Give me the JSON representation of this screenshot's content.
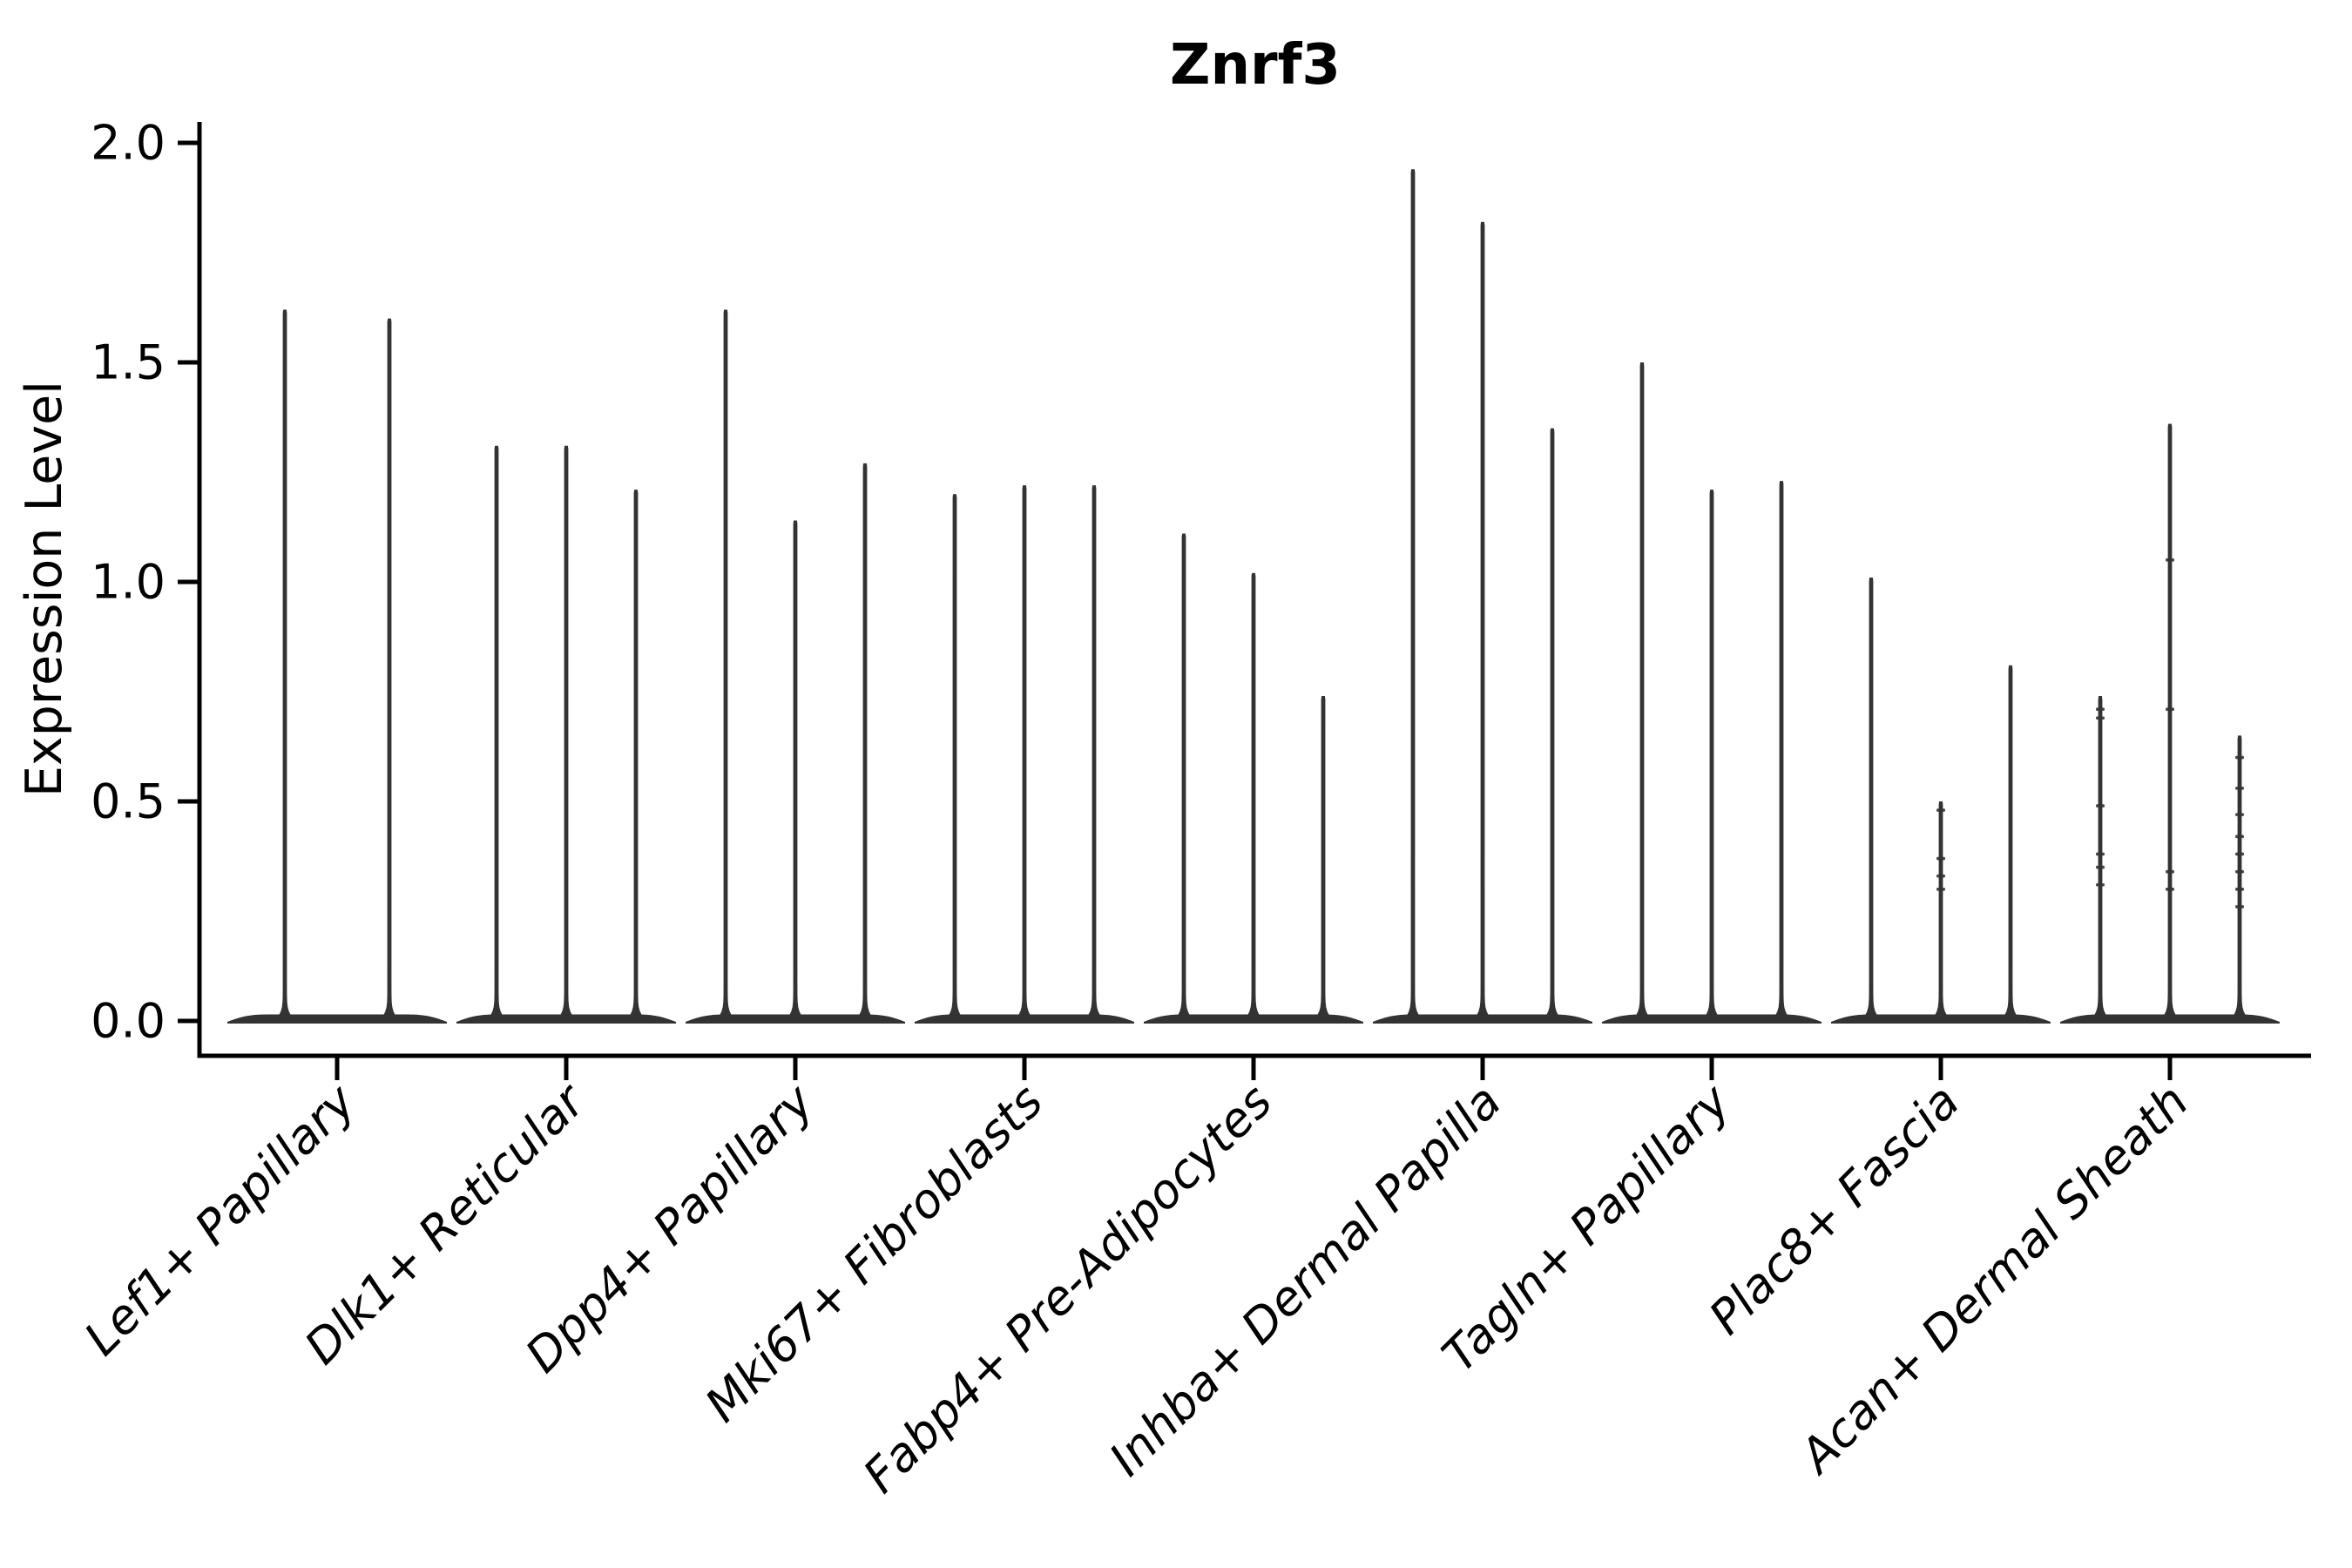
{
  "figure": {
    "title": "Znrf3"
  },
  "chart_data": {
    "type": "violin",
    "title": "Znrf3",
    "xlabel": "",
    "ylabel": "Expression Level",
    "ylim": [
      0,
      2.0
    ],
    "yticks": [
      0.0,
      0.5,
      1.0,
      1.5,
      2.0
    ],
    "ytick_labels": [
      "0.0",
      "0.5",
      "1.0",
      "1.5",
      "2.0"
    ],
    "x_tick_rotation": 45,
    "grid": false,
    "legend": "none",
    "categories": [
      "Lef1+ Papillary",
      "Dlk1+ Reticular",
      "Dpp4+ Papillary",
      "Mki67+ Fibroblasts",
      "Fabp4+ Pre-Adipocytes",
      "Inhba+ Dermal Papilla",
      "Tagln+ Papillary",
      "Plac8+ Fascia",
      "Acan+ Dermal Sheath"
    ],
    "groups": [
      {
        "category": "Lef1+ Papillary",
        "violin_maxima": [
          1.62,
          1.6
        ]
      },
      {
        "category": "Dlk1+ Reticular",
        "violin_maxima": [
          1.31,
          1.31,
          1.21
        ]
      },
      {
        "category": "Dpp4+ Papillary",
        "violin_maxima": [
          1.62,
          1.14,
          1.27
        ]
      },
      {
        "category": "Mki67+ Fibroblasts",
        "violin_maxima": [
          1.2,
          1.22,
          1.22
        ]
      },
      {
        "category": "Fabp4+ Pre-Adipocytes",
        "violin_maxima": [
          1.11,
          1.02,
          0.74
        ]
      },
      {
        "category": "Inhba+ Dermal Papilla",
        "violin_maxima": [
          1.94,
          1.82,
          1.35
        ]
      },
      {
        "category": "Tagln+ Papillary",
        "violin_maxima": [
          1.5,
          1.21,
          1.23
        ]
      },
      {
        "category": "Plac8+ Fascia",
        "violin_maxima": [
          1.01,
          0.5,
          0.81
        ],
        "dots": [
          [],
          [
            0.48,
            0.37,
            0.33,
            0.3
          ],
          []
        ]
      },
      {
        "category": "Acan+ Dermal Sheath",
        "violin_maxima": [
          0.74,
          1.36,
          0.65
        ],
        "dots": [
          [
            0.71,
            0.69,
            0.49,
            0.38,
            0.35,
            0.31
          ],
          [
            1.05,
            0.71,
            0.34,
            0.3
          ],
          [
            0.6,
            0.53,
            0.47,
            0.42,
            0.38,
            0.34,
            0.3,
            0.26
          ]
        ]
      }
    ],
    "colors": {
      "violin": "#333333",
      "axis": "#000000",
      "text": "#000000",
      "background": "#ffffff"
    }
  }
}
